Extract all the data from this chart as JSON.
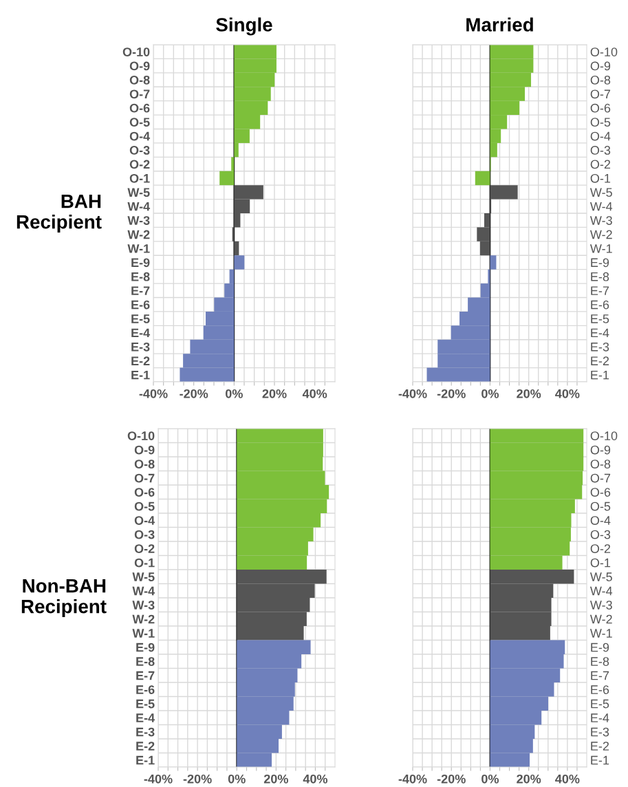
{
  "chart_data": [
    {
      "type": "bar",
      "orientation": "horizontal",
      "title": "Single",
      "ylabel": "BAH\nRecipient",
      "categories": [
        "O-10",
        "O-9",
        "O-8",
        "O-7",
        "O-6",
        "O-5",
        "O-4",
        "O-3",
        "O-2",
        "O-1",
        "W-5",
        "W-4",
        "W-3",
        "W-2",
        "W-1",
        "E-9",
        "E-8",
        "E-7",
        "E-6",
        "E-5",
        "E-4",
        "E-3",
        "E-2",
        "E-1"
      ],
      "values": [
        21.0,
        21.0,
        20.1,
        18.2,
        16.7,
        12.9,
        7.7,
        2.2,
        -1.4,
        -7.2,
        14.5,
        7.8,
        3.1,
        -0.9,
        2.4,
        5.1,
        -2.3,
        -4.8,
        -9.9,
        -14.1,
        -15.2,
        -21.8,
        -25.3,
        -26.9
      ],
      "colors": [
        "#7dc03a",
        "#7dc03a",
        "#7dc03a",
        "#7dc03a",
        "#7dc03a",
        "#7dc03a",
        "#7dc03a",
        "#7dc03a",
        "#7dc03a",
        "#7dc03a",
        "#555555",
        "#555555",
        "#555555",
        "#555555",
        "#555555",
        "#6f80bc",
        "#6f80bc",
        "#6f80bc",
        "#6f80bc",
        "#6f80bc",
        "#6f80bc",
        "#6f80bc",
        "#6f80bc",
        "#6f80bc"
      ],
      "xlim": [
        -40,
        50
      ],
      "xticks": [
        {
          "value": -40,
          "label": "-40%"
        },
        {
          "value": -35,
          "label": null
        },
        {
          "value": -30,
          "label": null
        },
        {
          "value": -25,
          "label": null
        },
        {
          "value": -20,
          "label": "-20%"
        },
        {
          "value": -15,
          "label": null
        },
        {
          "value": -10,
          "label": null
        },
        {
          "value": -5,
          "label": null
        },
        {
          "value": 0,
          "label": "0%"
        },
        {
          "value": 5,
          "label": null
        },
        {
          "value": 10,
          "label": null
        },
        {
          "value": 15,
          "label": null
        },
        {
          "value": 20,
          "label": "20%"
        },
        {
          "value": 25,
          "label": null
        },
        {
          "value": 30,
          "label": null
        },
        {
          "value": 35,
          "label": null
        },
        {
          "value": 40,
          "label": "40%"
        },
        {
          "value": 45,
          "label": null
        }
      ],
      "ref_lines": [
        {
          "axis": "x",
          "value": 0,
          "color": "#000000"
        }
      ],
      "grid": true
    },
    {
      "type": "bar",
      "orientation": "horizontal",
      "title": "Married",
      "categories": [
        "O-10",
        "O-9",
        "O-8",
        "O-7",
        "O-6",
        "O-5",
        "O-4",
        "O-3",
        "O-2",
        "O-1",
        "W-5",
        "W-4",
        "W-3",
        "W-2",
        "W-1",
        "E-9",
        "E-8",
        "E-7",
        "E-6",
        "E-5",
        "E-4",
        "E-3",
        "E-2",
        "E-1"
      ],
      "values": [
        22.4,
        22.4,
        21.2,
        18.0,
        15.2,
        8.8,
        5.6,
        3.7,
        0.4,
        -7.7,
        14.3,
        0.6,
        -3.0,
        -6.8,
        -5.2,
        3.2,
        -1.1,
        -4.9,
        -11.5,
        -15.8,
        -20.2,
        -27.1,
        -27.1,
        -32.7
      ],
      "colors": [
        "#7dc03a",
        "#7dc03a",
        "#7dc03a",
        "#7dc03a",
        "#7dc03a",
        "#7dc03a",
        "#7dc03a",
        "#7dc03a",
        "#7dc03a",
        "#7dc03a",
        "#555555",
        "#555555",
        "#555555",
        "#555555",
        "#555555",
        "#6f80bc",
        "#6f80bc",
        "#6f80bc",
        "#6f80bc",
        "#6f80bc",
        "#6f80bc",
        "#6f80bc",
        "#6f80bc",
        "#6f80bc"
      ],
      "xlim": [
        -40,
        50
      ],
      "xticks": [
        {
          "value": -40,
          "label": "-40%"
        },
        {
          "value": -35,
          "label": null
        },
        {
          "value": -30,
          "label": null
        },
        {
          "value": -25,
          "label": null
        },
        {
          "value": -20,
          "label": "-20%"
        },
        {
          "value": -15,
          "label": null
        },
        {
          "value": -10,
          "label": null
        },
        {
          "value": -5,
          "label": null
        },
        {
          "value": 0,
          "label": "0%"
        },
        {
          "value": 5,
          "label": null
        },
        {
          "value": 10,
          "label": null
        },
        {
          "value": 15,
          "label": null
        },
        {
          "value": 20,
          "label": "20%"
        },
        {
          "value": 25,
          "label": null
        },
        {
          "value": 30,
          "label": null
        },
        {
          "value": 35,
          "label": null
        },
        {
          "value": 40,
          "label": "40%"
        },
        {
          "value": 45,
          "label": null
        }
      ],
      "ref_lines": [
        {
          "axis": "x",
          "value": 0,
          "color": "#000000"
        }
      ],
      "grid": true
    },
    {
      "type": "bar",
      "orientation": "horizontal",
      "ylabel": "Non-BAH\nRecipient",
      "categories": [
        "O-10",
        "O-9",
        "O-8",
        "O-7",
        "O-6",
        "O-5",
        "O-4",
        "O-3",
        "O-2",
        "O-1",
        "W-5",
        "W-4",
        "W-3",
        "W-2",
        "W-1",
        "E-9",
        "E-8",
        "E-7",
        "E-6",
        "E-5",
        "E-4",
        "E-3",
        "E-2",
        "E-1"
      ],
      "values": [
        44.0,
        44.0,
        43.8,
        44.9,
        46.9,
        45.9,
        42.7,
        39.0,
        36.3,
        35.7,
        45.7,
        39.7,
        37.2,
        35.6,
        34.1,
        37.6,
        32.9,
        30.9,
        29.6,
        28.9,
        26.7,
        23.0,
        21.3,
        17.8
      ],
      "colors": [
        "#7dc03a",
        "#7dc03a",
        "#7dc03a",
        "#7dc03a",
        "#7dc03a",
        "#7dc03a",
        "#7dc03a",
        "#7dc03a",
        "#7dc03a",
        "#7dc03a",
        "#555555",
        "#555555",
        "#555555",
        "#555555",
        "#555555",
        "#6f80bc",
        "#6f80bc",
        "#6f80bc",
        "#6f80bc",
        "#6f80bc",
        "#6f80bc",
        "#6f80bc",
        "#6f80bc",
        "#6f80bc"
      ],
      "xlim": [
        -40,
        50
      ],
      "xticks": [
        {
          "value": -40,
          "label": "-40%"
        },
        {
          "value": -35,
          "label": null
        },
        {
          "value": -30,
          "label": null
        },
        {
          "value": -25,
          "label": null
        },
        {
          "value": -20,
          "label": "-20%"
        },
        {
          "value": -15,
          "label": null
        },
        {
          "value": -10,
          "label": null
        },
        {
          "value": -5,
          "label": null
        },
        {
          "value": 0,
          "label": "0%"
        },
        {
          "value": 5,
          "label": null
        },
        {
          "value": 10,
          "label": null
        },
        {
          "value": 15,
          "label": null
        },
        {
          "value": 20,
          "label": "20%"
        },
        {
          "value": 25,
          "label": null
        },
        {
          "value": 30,
          "label": null
        },
        {
          "value": 35,
          "label": null
        },
        {
          "value": 40,
          "label": "40%"
        },
        {
          "value": 45,
          "label": null
        }
      ],
      "ref_lines": [
        {
          "axis": "x",
          "value": 0,
          "color": "#000000"
        }
      ],
      "grid": true
    },
    {
      "type": "bar",
      "orientation": "horizontal",
      "categories": [
        "O-10",
        "O-9",
        "O-8",
        "O-7",
        "O-6",
        "O-5",
        "O-4",
        "O-3",
        "O-2",
        "O-1",
        "W-5",
        "W-4",
        "W-3",
        "W-2",
        "W-1",
        "E-9",
        "E-8",
        "E-7",
        "E-6",
        "E-5",
        "E-4",
        "E-3",
        "E-2",
        "E-1"
      ],
      "values": [
        48.3,
        48.3,
        48.3,
        47.9,
        47.6,
        43.9,
        42.0,
        41.8,
        41.2,
        37.4,
        43.4,
        32.7,
        31.7,
        31.7,
        31.1,
        38.7,
        38.1,
        36.2,
        33.1,
        30.1,
        26.6,
        23.1,
        22.2,
        20.5
      ],
      "colors": [
        "#7dc03a",
        "#7dc03a",
        "#7dc03a",
        "#7dc03a",
        "#7dc03a",
        "#7dc03a",
        "#7dc03a",
        "#7dc03a",
        "#7dc03a",
        "#7dc03a",
        "#555555",
        "#555555",
        "#555555",
        "#555555",
        "#555555",
        "#6f80bc",
        "#6f80bc",
        "#6f80bc",
        "#6f80bc",
        "#6f80bc",
        "#6f80bc",
        "#6f80bc",
        "#6f80bc",
        "#6f80bc"
      ],
      "xlim": [
        -40,
        50
      ],
      "xticks": [
        {
          "value": -40,
          "label": "-40%"
        },
        {
          "value": -35,
          "label": null
        },
        {
          "value": -30,
          "label": null
        },
        {
          "value": -25,
          "label": null
        },
        {
          "value": -20,
          "label": "-20%"
        },
        {
          "value": -15,
          "label": null
        },
        {
          "value": -10,
          "label": null
        },
        {
          "value": -5,
          "label": null
        },
        {
          "value": 0,
          "label": "0%"
        },
        {
          "value": 5,
          "label": null
        },
        {
          "value": 10,
          "label": null
        },
        {
          "value": 15,
          "label": null
        },
        {
          "value": 20,
          "label": "20%"
        },
        {
          "value": 25,
          "label": null
        },
        {
          "value": 30,
          "label": null
        },
        {
          "value": 35,
          "label": null
        },
        {
          "value": 40,
          "label": "40%"
        },
        {
          "value": 45,
          "label": null
        }
      ],
      "ref_lines": [
        {
          "axis": "x",
          "value": 0,
          "color": "#000000"
        }
      ],
      "grid": true
    }
  ]
}
